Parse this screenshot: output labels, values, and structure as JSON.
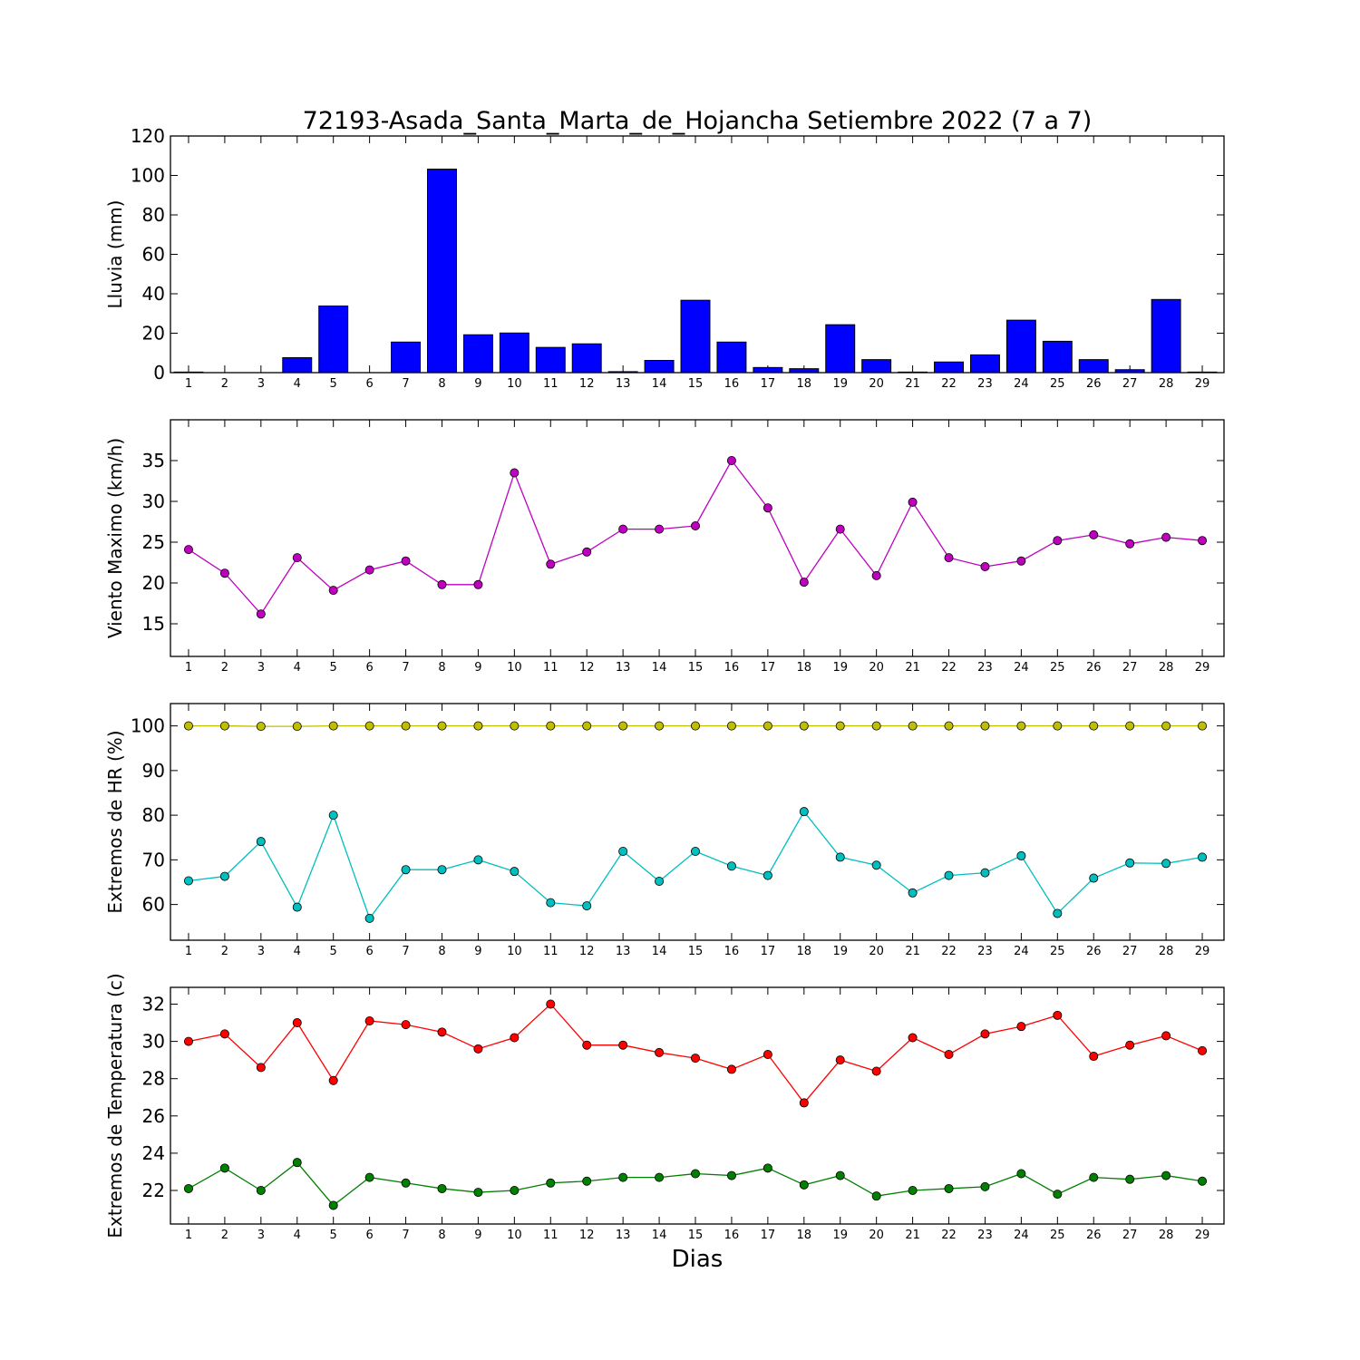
{
  "chart_data": {
    "title": "72193-Asada_Santa_Marta_de_Hojancha Setiembre 2022  (7 a 7)",
    "xlabel": "Dias",
    "x": [
      1,
      2,
      3,
      4,
      5,
      6,
      7,
      8,
      9,
      10,
      11,
      12,
      13,
      14,
      15,
      16,
      17,
      18,
      19,
      20,
      21,
      22,
      23,
      24,
      25,
      26,
      27,
      28,
      29
    ],
    "panels": [
      {
        "type": "bar",
        "ylabel": "Lluvia (mm)",
        "ylim": [
          0,
          120
        ],
        "yticks": [
          0,
          20,
          40,
          60,
          80,
          100,
          120
        ],
        "grid": false,
        "series": [
          {
            "color": "#0000ff",
            "values": [
              0.3,
              0,
              0,
              7.6,
              33.8,
              0,
              15.5,
              103.2,
              19.2,
              20.1,
              12.8,
              14.6,
              0.5,
              6.2,
              36.7,
              15.5,
              2.6,
              2.0,
              24.3,
              6.6,
              0.3,
              5.4,
              9.0,
              26.6,
              15.9,
              6.6,
              1.5,
              37.1,
              0.3
            ]
          }
        ]
      },
      {
        "type": "line",
        "ylabel": "Viento Maximo (km/h)",
        "ylim": [
          11,
          40
        ],
        "yticks": [
          15,
          20,
          25,
          30,
          35
        ],
        "grid": false,
        "series": [
          {
            "color": "#bf00bf",
            "values": [
              24.1,
              21.2,
              16.2,
              23.1,
              19.1,
              21.6,
              22.7,
              19.8,
              19.8,
              33.5,
              22.3,
              23.8,
              26.6,
              26.6,
              27.0,
              35.0,
              29.2,
              20.1,
              26.6,
              20.9,
              29.9,
              23.1,
              22.0,
              22.7,
              25.2,
              25.9,
              24.8,
              25.6,
              25.2
            ]
          }
        ]
      },
      {
        "type": "line",
        "ylabel": "Extremos de HR (%)",
        "ylim": [
          52,
          105
        ],
        "yticks": [
          60,
          70,
          80,
          90,
          100
        ],
        "grid": false,
        "series": [
          {
            "color": "#bfbf00",
            "values": [
              100,
              100,
              99.9,
              99.9,
              100,
              100,
              100,
              100,
              100,
              100,
              100,
              100,
              100,
              100,
              100,
              100,
              100,
              100,
              100,
              100,
              100,
              100,
              100,
              100,
              100,
              100,
              100,
              100,
              100
            ]
          },
          {
            "color": "#00bfbf",
            "values": [
              65.3,
              66.3,
              74.1,
              59.4,
              80.0,
              56.9,
              67.8,
              67.8,
              70.0,
              67.4,
              60.4,
              59.7,
              71.9,
              65.2,
              71.9,
              68.6,
              66.5,
              80.8,
              70.6,
              68.8,
              62.6,
              66.5,
              67.1,
              70.9,
              58.0,
              65.9,
              69.3,
              69.2,
              70.6
            ]
          }
        ]
      },
      {
        "type": "line",
        "ylabel": "Extremos de Temperatura (c)",
        "ylim": [
          20.2,
          32.9
        ],
        "yticks": [
          22,
          24,
          26,
          28,
          30,
          32
        ],
        "grid": false,
        "series": [
          {
            "color": "#ff0000",
            "values": [
              30.0,
              30.4,
              28.6,
              31.0,
              27.9,
              31.1,
              30.9,
              30.5,
              29.6,
              30.2,
              32.0,
              29.8,
              29.8,
              29.4,
              29.1,
              28.5,
              29.3,
              26.7,
              29.0,
              28.4,
              30.2,
              29.3,
              30.4,
              30.8,
              31.4,
              29.2,
              29.8,
              30.3,
              29.5
            ]
          },
          {
            "color": "#008000",
            "values": [
              22.1,
              23.2,
              22.0,
              23.5,
              21.2,
              22.7,
              22.4,
              22.1,
              21.9,
              22.0,
              22.4,
              22.5,
              22.7,
              22.7,
              22.9,
              22.8,
              23.2,
              22.3,
              22.8,
              21.7,
              22.0,
              22.1,
              22.2,
              22.9,
              21.8,
              22.7,
              22.6,
              22.8,
              22.5
            ]
          }
        ]
      }
    ]
  }
}
